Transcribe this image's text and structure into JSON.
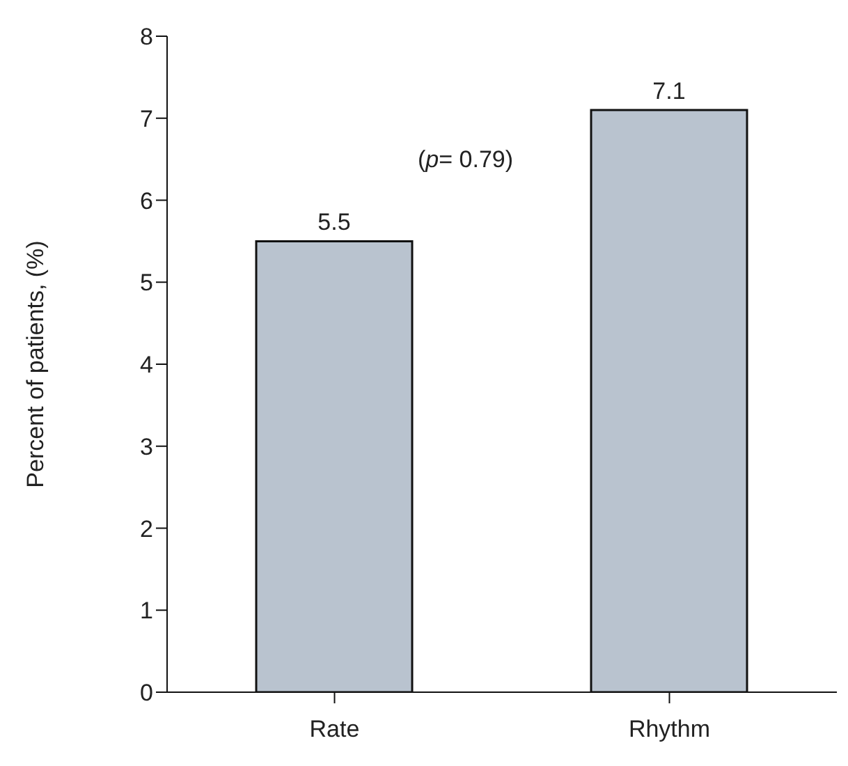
{
  "chart_data": {
    "type": "bar",
    "ylabel": "Percent of patients, (%)",
    "categories": [
      "Rate",
      "Rhythm"
    ],
    "values": [
      5.5,
      7.1
    ],
    "color": "#b9c3cf",
    "ylim": [
      0,
      8
    ],
    "yticks": [
      0,
      1,
      2,
      3,
      4,
      5,
      6,
      7,
      8
    ],
    "data_labels": true,
    "grid": false,
    "legend": false,
    "annotations": [
      "(p= 0.79)"
    ]
  }
}
